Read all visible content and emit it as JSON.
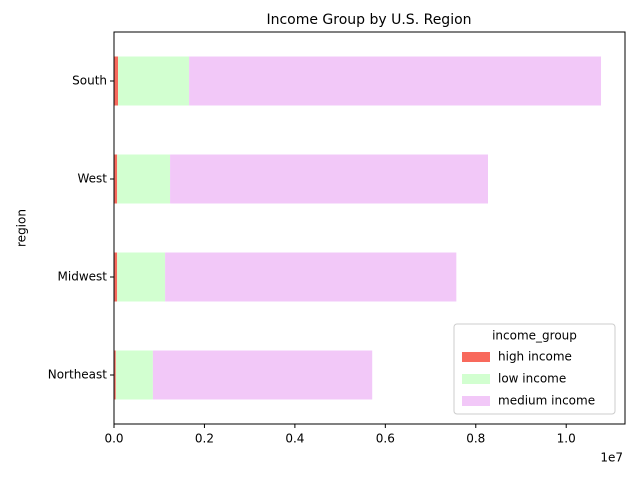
{
  "chart_data": {
    "type": "barh_stacked",
    "title": "Income Group by U.S. Region",
    "y_label": "region",
    "x_offset_label": "1e7",
    "legend_title": "income_group",
    "legend_loc": "lower right",
    "categories": [
      "Northeast",
      "Midwest",
      "West",
      "South"
    ],
    "series": [
      {
        "name": "high income",
        "color": "#f8695c",
        "values": [
          40000,
          70000,
          70000,
          90000
        ]
      },
      {
        "name": "low income",
        "color": "#d2ffd0",
        "values": [
          820000,
          1060000,
          1170000,
          1570000
        ]
      },
      {
        "name": "medium income",
        "color": "#f2c8f8",
        "values": [
          4850000,
          6440000,
          7030000,
          9110000
        ]
      }
    ],
    "xlim": [
      0,
      11300000
    ],
    "xticks": [
      {
        "value": 0,
        "label": "0.0"
      },
      {
        "value": 2000000,
        "label": "0.2"
      },
      {
        "value": 4000000,
        "label": "0.4"
      },
      {
        "value": 6000000,
        "label": "0.6"
      },
      {
        "value": 8000000,
        "label": "0.8"
      },
      {
        "value": 10000000,
        "label": "1.0"
      }
    ]
  }
}
